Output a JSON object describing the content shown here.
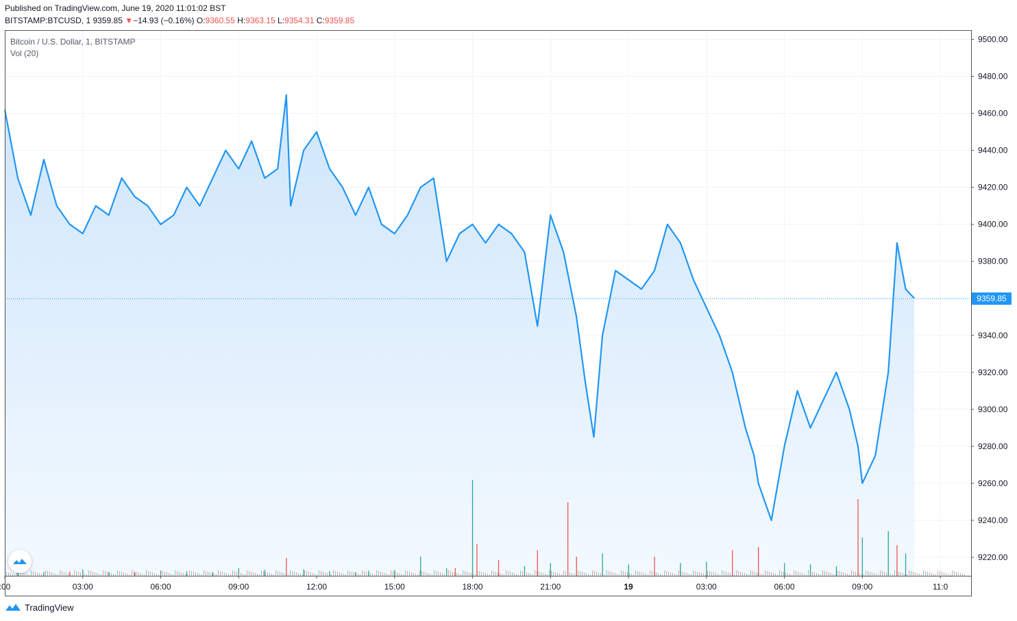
{
  "header": {
    "published": "Published on TradingView.com, June 19, 2020 11:01:02 BST",
    "symbol": "BITSTAMP:BTCUSD, 1",
    "last": "9359.85",
    "arrow": "▼",
    "change": "−14.93 (−0.16%)",
    "o_label": "O:",
    "o_value": "9360.55",
    "h_label": "H:",
    "h_value": "9363.15",
    "l_label": "L:",
    "l_value": "9354.31",
    "c_label": "C:",
    "c_value": "9359.85"
  },
  "legend": {
    "title": "Bitcoin / U.S. Dollar, 1, BITSTAMP",
    "volume": "Vol (20)"
  },
  "footer": {
    "brand": "TradingView"
  },
  "colors": {
    "line": "#2196f3",
    "fill_top": "#cfe6fb",
    "fill_bottom": "#f3f9ff",
    "up_volume": "#26a69a",
    "down_volume": "#ef5350",
    "grid": "#f0f3fa",
    "price_label_bg": "#2196f3"
  },
  "chart_data": {
    "type": "area",
    "title": "Bitcoin / U.S. Dollar, 1, BITSTAMP",
    "x": [
      "00:00",
      "00:30",
      "01:00",
      "01:30",
      "02:00",
      "02:30",
      "03:00",
      "03:30",
      "04:00",
      "04:30",
      "05:00",
      "05:30",
      "06:00",
      "06:30",
      "07:00",
      "07:30",
      "08:00",
      "08:30",
      "09:00",
      "09:30",
      "10:00",
      "10:30",
      "10:50",
      "11:00",
      "11:30",
      "12:00",
      "12:30",
      "13:00",
      "13:30",
      "14:00",
      "14:30",
      "15:00",
      "15:30",
      "16:00",
      "16:30",
      "17:00",
      "17:30",
      "18:00",
      "18:30",
      "19:00",
      "19:30",
      "20:00",
      "20:30",
      "21:00",
      "21:30",
      "22:00",
      "22:20",
      "22:40",
      "23:00",
      "23:30",
      "00:00",
      "00:30",
      "01:00",
      "01:30",
      "02:00",
      "02:30",
      "03:00",
      "03:30",
      "04:00",
      "04:30",
      "04:50",
      "05:00",
      "05:30",
      "06:00",
      "06:30",
      "07:00",
      "07:30",
      "08:00",
      "08:30",
      "08:50",
      "09:00",
      "09:30",
      "10:00",
      "10:20",
      "10:40",
      "11:00"
    ],
    "series": [
      {
        "values": [
          9462,
          9425,
          9405,
          9435,
          9410,
          9400,
          9395,
          9410,
          9405,
          9425,
          9415,
          9410,
          9400,
          9405,
          9420,
          9410,
          9425,
          9440,
          9430,
          9445,
          9425,
          9430,
          9470,
          9410,
          9440,
          9450,
          9430,
          9420,
          9405,
          9420,
          9400,
          9395,
          9405,
          9420,
          9425,
          9380,
          9395,
          9400,
          9390,
          9400,
          9395,
          9385,
          9345,
          9405,
          9385,
          9350,
          9315,
          9285,
          9340,
          9375,
          9370,
          9365,
          9375,
          9400,
          9390,
          9370,
          9355,
          9340,
          9320,
          9290,
          9275,
          9260,
          9240,
          9280,
          9310,
          9290,
          9305,
          9320,
          9300,
          9280,
          9260,
          9275,
          9320,
          9390,
          9365,
          9360
        ]
      }
    ],
    "ylim": [
      9210,
      9505
    ],
    "yticks": [
      "9500.00",
      "9480.00",
      "9460.00",
      "9440.00",
      "9420.00",
      "9400.00",
      "9380.00",
      "9360.00",
      "9340.00",
      "9320.00",
      "9300.00",
      "9280.00",
      "9260.00",
      "9240.00",
      "9220.00"
    ],
    "xticks": [
      ":00",
      "03:00",
      "06:00",
      "09:00",
      "12:00",
      "15:00",
      "18:00",
      "21:00",
      "19",
      "03:00",
      "06:00",
      "09:00",
      "11:0"
    ],
    "last_price": 9359.85,
    "last_price_label": "9359.85",
    "grid": true,
    "volume": {
      "name": "Vol (20)",
      "x": [
        "00:30",
        "01:30",
        "02:30",
        "03:00",
        "04:00",
        "05:00",
        "06:00",
        "07:00",
        "08:00",
        "09:00",
        "10:00",
        "10:50",
        "11:30",
        "12:30",
        "13:30",
        "14:00",
        "15:00",
        "16:00",
        "17:00",
        "17:20",
        "18:00",
        "18:10",
        "19:00",
        "20:00",
        "20:30",
        "21:00",
        "21:40",
        "22:00",
        "23:00",
        "00:00",
        "01:00",
        "02:00",
        "03:00",
        "04:00",
        "05:00",
        "06:00",
        "07:00",
        "08:00",
        "08:50",
        "09:00",
        "10:00",
        "10:20",
        "10:40"
      ],
      "values": [
        8,
        6,
        7,
        10,
        6,
        5,
        8,
        7,
        6,
        12,
        9,
        28,
        10,
        7,
        6,
        8,
        9,
        30,
        12,
        12,
        150,
        50,
        25,
        15,
        40,
        20,
        115,
        30,
        35,
        18,
        30,
        20,
        22,
        40,
        45,
        20,
        18,
        15,
        120,
        60,
        70,
        48,
        35
      ],
      "direction": [
        "up",
        "up",
        "down",
        "up",
        "up",
        "down",
        "up",
        "up",
        "up",
        "up",
        "up",
        "down",
        "up",
        "up",
        "up",
        "up",
        "up",
        "up",
        "up",
        "down",
        "up",
        "down",
        "down",
        "up",
        "down",
        "up",
        "down",
        "down",
        "up",
        "up",
        "down",
        "up",
        "up",
        "down",
        "down",
        "up",
        "up",
        "up",
        "down",
        "up",
        "up",
        "down",
        "up"
      ]
    }
  }
}
